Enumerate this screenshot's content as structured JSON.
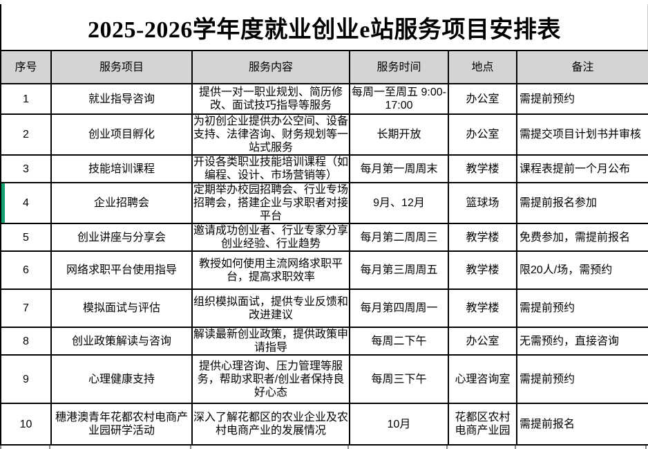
{
  "title": "2025-2026学年度就业创业e站服务项目安排表",
  "colors": {
    "header_bg": "#d4d4d4",
    "border": "#000000",
    "selection_green": "#14a073"
  },
  "table": {
    "columns": [
      "序号",
      "服务项目",
      "服务内容",
      "服务时间",
      "地点",
      "备注"
    ],
    "selection": {
      "row_no": "4"
    },
    "rows": [
      {
        "no": "1",
        "project": "就业指导咨询",
        "content": "提供一对一职业规划、简历修改、面试技巧指导等服务",
        "time": "每周一至周五 9:00-17:00",
        "location": "办公室",
        "note": "需提前预约"
      },
      {
        "no": "2",
        "project": "创业项目孵化",
        "content": "为初创企业提供办公空间、设备支持、法律咨询、财务规划等一站式服务",
        "time": "长期开放",
        "location": "办公室",
        "note": "需提交项目计划书并审核"
      },
      {
        "no": "3",
        "project": "技能培训课程",
        "content": "开设各类职业技能培训课程（如编程、设计、市场营销等）",
        "time": "每月第一周周末",
        "location": "教学楼",
        "note": "课程表提前一个月公布"
      },
      {
        "no": "4",
        "project": "企业招聘会",
        "content": "定期举办校园招聘会、行业专场招聘会，搭建企业与求职者对接平台",
        "time": "9月、12月",
        "location": "篮球场",
        "note": "需提前报名参加"
      },
      {
        "no": "5",
        "project": "创业讲座与分享会",
        "content": "邀请成功创业者、行业专家分享创业经验、行业趋势",
        "time": "每月第二周周三",
        "location": "教学楼",
        "note": "免费参加，需提前报名"
      },
      {
        "no": "6",
        "project": "网络求职平台使用指导",
        "content": "教授如何使用主流网络求职平台，提高求职效率",
        "time": "每月第三周周五",
        "location": "教学楼",
        "note": "限20人/场，需预约"
      },
      {
        "no": "7",
        "project": "模拟面试与评估",
        "content": "组织模拟面试，提供专业反馈和改进建议",
        "time": "每月第四周周一",
        "location": "教学楼",
        "note": "需提前预约"
      },
      {
        "no": "8",
        "project": "创业政策解读与咨询",
        "content": "解读最新创业政策，提供政策申请指导",
        "time": "每周二下午",
        "location": "办公室",
        "note": "无需预约，直接咨询"
      },
      {
        "no": "9",
        "project": "心理健康支持",
        "content": "提供心理咨询、压力管理等服务，帮助求职者/创业者保持良好心态",
        "time": "每周三下午",
        "location": "心理咨询室",
        "note": "需提前预约"
      },
      {
        "no": "10",
        "project": "穗港澳青年花都农村电商产业园研学活动",
        "content": "深入了解花都区的农业企业及农村电商产业的发展情况",
        "time": "10月",
        "location": "花都区农村电商产业园",
        "note": "需提前报名"
      }
    ]
  }
}
